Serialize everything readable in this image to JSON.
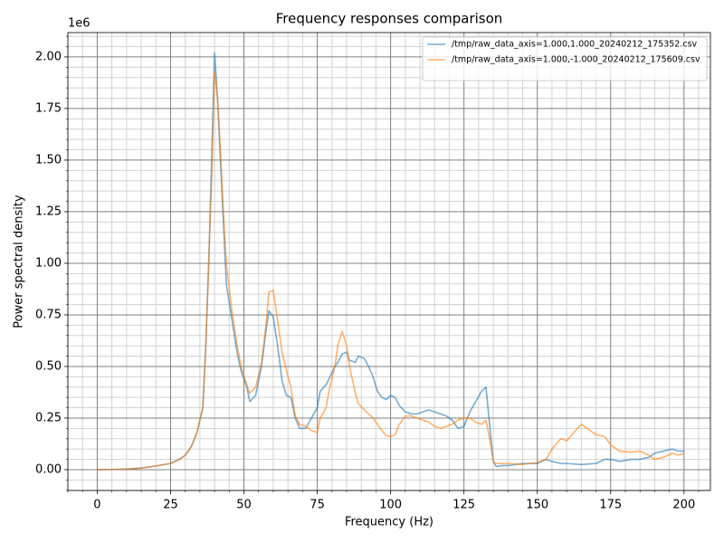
{
  "chart_data": {
    "type": "line",
    "title": "Frequency responses comparison",
    "xlabel": "Frequency (Hz)",
    "ylabel": "Power spectral density",
    "y_offset_label": "1e6",
    "x": [
      0,
      5,
      10,
      15,
      20,
      25,
      28,
      30,
      32,
      34,
      36,
      37,
      38,
      39,
      40,
      41,
      42,
      43,
      44,
      46,
      47.5,
      49,
      51,
      52,
      54,
      56,
      57.5,
      58.5,
      60,
      61.5,
      63,
      64.5,
      66,
      67.5,
      69,
      71,
      73,
      75,
      76,
      78,
      79,
      81,
      82,
      83.5,
      85,
      86,
      88,
      89,
      91,
      92.5,
      94,
      95.5,
      97,
      98.5,
      100,
      101.5,
      103,
      105,
      107,
      109,
      111,
      113,
      115,
      117,
      119,
      121,
      123,
      125,
      127,
      129,
      131,
      132.5,
      134,
      135,
      136,
      138,
      140,
      145,
      150,
      153,
      155,
      158,
      160,
      165,
      170,
      173,
      175,
      178,
      182,
      185,
      188,
      190,
      193,
      196,
      198,
      200
    ],
    "series": [
      {
        "name": "/tmp/raw_data_axis=1.000,1.000_20240212_175352.csv",
        "color": "#1f77b4",
        "values": [
          0,
          0.001,
          0.003,
          0.008,
          0.018,
          0.03,
          0.05,
          0.07,
          0.11,
          0.18,
          0.3,
          0.6,
          1.0,
          1.5,
          2.02,
          1.8,
          1.5,
          1.2,
          0.9,
          0.72,
          0.58,
          0.48,
          0.4,
          0.33,
          0.36,
          0.5,
          0.67,
          0.77,
          0.74,
          0.6,
          0.43,
          0.36,
          0.35,
          0.25,
          0.2,
          0.2,
          0.25,
          0.3,
          0.38,
          0.41,
          0.44,
          0.5,
          0.52,
          0.56,
          0.57,
          0.53,
          0.52,
          0.55,
          0.54,
          0.5,
          0.45,
          0.38,
          0.35,
          0.34,
          0.36,
          0.35,
          0.31,
          0.28,
          0.27,
          0.27,
          0.28,
          0.29,
          0.28,
          0.27,
          0.26,
          0.24,
          0.2,
          0.21,
          0.28,
          0.33,
          0.38,
          0.4,
          0.18,
          0.04,
          0.015,
          0.02,
          0.02,
          0.03,
          0.03,
          0.05,
          0.04,
          0.03,
          0.03,
          0.025,
          0.03,
          0.05,
          0.05,
          0.04,
          0.05,
          0.05,
          0.06,
          0.08,
          0.09,
          0.1,
          0.09,
          0.09
        ]
      },
      {
        "name": "/tmp/raw_data_axis=1.000,-1.000_20240212_175609.csv",
        "color": "#ff7f0e",
        "values": [
          0,
          0.001,
          0.003,
          0.008,
          0.018,
          0.03,
          0.05,
          0.07,
          0.11,
          0.18,
          0.3,
          0.6,
          1.0,
          1.4,
          1.93,
          1.8,
          1.55,
          1.25,
          1.0,
          0.76,
          0.62,
          0.5,
          0.41,
          0.37,
          0.4,
          0.52,
          0.7,
          0.86,
          0.87,
          0.72,
          0.57,
          0.48,
          0.4,
          0.26,
          0.22,
          0.21,
          0.19,
          0.18,
          0.25,
          0.3,
          0.38,
          0.5,
          0.6,
          0.67,
          0.6,
          0.5,
          0.37,
          0.32,
          0.29,
          0.27,
          0.25,
          0.22,
          0.19,
          0.165,
          0.16,
          0.17,
          0.22,
          0.26,
          0.26,
          0.25,
          0.24,
          0.23,
          0.21,
          0.2,
          0.21,
          0.22,
          0.24,
          0.25,
          0.25,
          0.23,
          0.22,
          0.24,
          0.13,
          0.04,
          0.03,
          0.03,
          0.03,
          0.025,
          0.035,
          0.05,
          0.1,
          0.15,
          0.14,
          0.22,
          0.17,
          0.16,
          0.12,
          0.09,
          0.085,
          0.09,
          0.07,
          0.05,
          0.06,
          0.08,
          0.07,
          0.08
        ]
      }
    ],
    "line_alpha": 0.6,
    "xlim": [
      -10,
      209
    ],
    "ylim": [
      -0.101,
      2.118
    ],
    "xticks": [
      0,
      25,
      50,
      75,
      100,
      125,
      150,
      175,
      200
    ],
    "yticks": [
      {
        "value": 0,
        "label": "0.00"
      },
      0.25,
      {
        "value": 0.5,
        "label": "0.50"
      },
      0.75,
      {
        "value": 1,
        "label": "1.00"
      },
      1.25,
      {
        "value": 1.5,
        "label": "1.50"
      },
      1.75,
      {
        "value": 2,
        "label": "2.00"
      }
    ],
    "xminorticks": [
      -10,
      -5,
      5,
      10,
      15,
      20,
      30,
      35,
      40,
      45,
      55,
      60,
      65,
      70,
      80,
      85,
      90,
      95,
      105,
      110,
      115,
      120,
      130,
      135,
      140,
      145,
      155,
      160,
      165,
      170,
      180,
      185,
      190,
      195,
      205
    ],
    "yminorticks": [
      -0.1,
      -0.05,
      0.05,
      0.1,
      0.15,
      0.2,
      0.3,
      0.35,
      0.4,
      0.45,
      0.55,
      0.6,
      0.65,
      0.7,
      0.8,
      0.85,
      0.9,
      0.95,
      1.05,
      1.1,
      1.15,
      1.2,
      1.3,
      1.35,
      1.4,
      1.45,
      1.55,
      1.6,
      1.65,
      1.7,
      1.8,
      1.85,
      1.9,
      1.95,
      2.05,
      2.1
    ],
    "grid": true,
    "minor_grid": true,
    "legend_loc": "upper right"
  }
}
